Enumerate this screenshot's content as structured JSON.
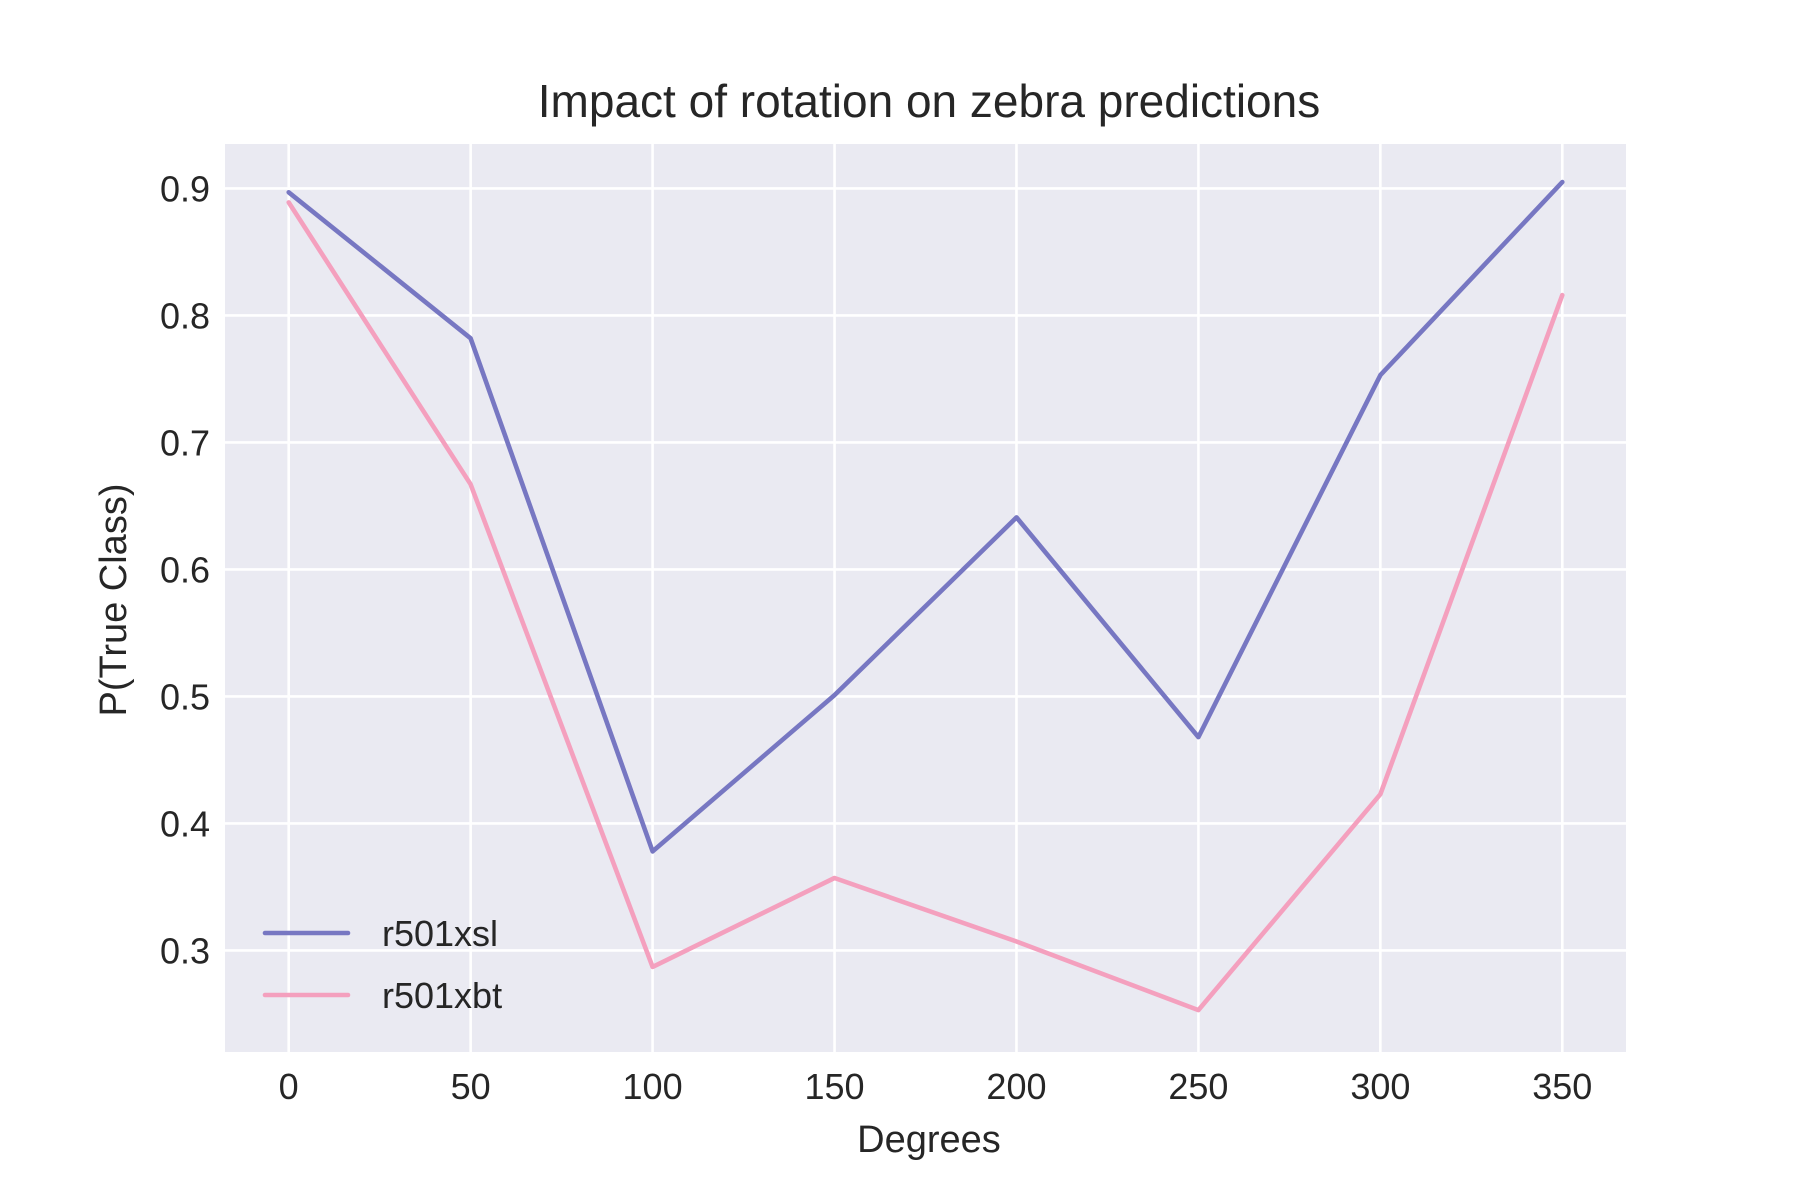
{
  "chart_data": {
    "type": "line",
    "title": "Impact of rotation on zebra predictions",
    "xlabel": "Degrees",
    "ylabel": "P(True Class)",
    "x": [
      0,
      50,
      100,
      150,
      200,
      250,
      300,
      350
    ],
    "xlim": [
      -17.5,
      367.5
    ],
    "ylim": [
      0.22,
      0.935
    ],
    "xticks": [
      0,
      50,
      100,
      150,
      200,
      250,
      300,
      350
    ],
    "xtick_labels": [
      "0",
      "50",
      "100",
      "150",
      "200",
      "250",
      "300",
      "350"
    ],
    "yticks": [
      0.3,
      0.4,
      0.5,
      0.6,
      0.7,
      0.8,
      0.9
    ],
    "ytick_labels": [
      "0.3",
      "0.4",
      "0.5",
      "0.6",
      "0.7",
      "0.8",
      "0.9"
    ],
    "grid": true,
    "legend_position": "lower-left",
    "background_color": "#eaeaf2",
    "series": [
      {
        "name": "r501xsl",
        "color": "#7777c2",
        "values": [
          0.897,
          0.782,
          0.378,
          0.501,
          0.641,
          0.468,
          0.753,
          0.905
        ]
      },
      {
        "name": "r501xbt",
        "color": "#f4a0be",
        "values": [
          0.889,
          0.667,
          0.287,
          0.357,
          0.307,
          0.253,
          0.423,
          0.816
        ]
      }
    ]
  }
}
